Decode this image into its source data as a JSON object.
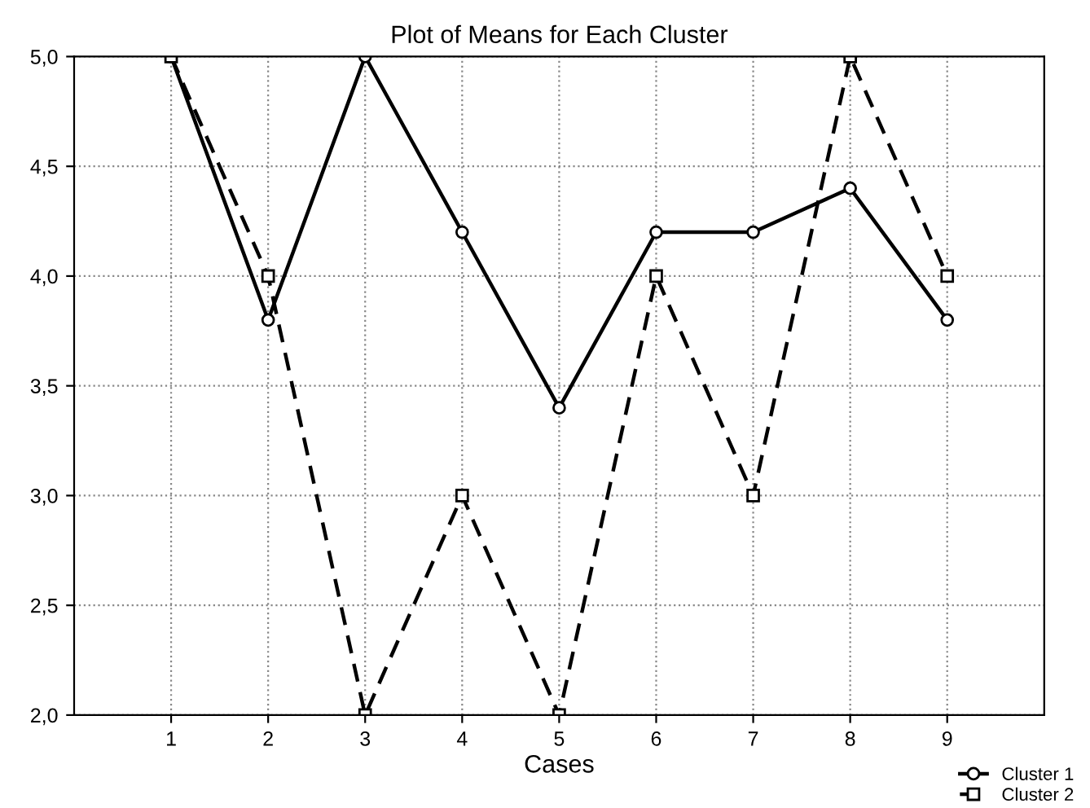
{
  "chart_data": {
    "type": "line",
    "title": "Plot of Means for Each Cluster",
    "xlabel": "Cases",
    "x": [
      1,
      2,
      3,
      4,
      5,
      6,
      7,
      8,
      9
    ],
    "series": [
      {
        "name": "Cluster 1",
        "color": "#000000",
        "marker": "circle",
        "line_style": "solid",
        "values": [
          5.0,
          3.8,
          5.0,
          4.2,
          3.4,
          4.2,
          4.2,
          4.4,
          3.8
        ]
      },
      {
        "name": "Cluster 2",
        "color": "#000000",
        "marker": "square",
        "line_style": "dashed",
        "values": [
          5.0,
          4.0,
          2.0,
          3.0,
          2.0,
          4.0,
          3.0,
          5.0,
          4.0
        ]
      }
    ],
    "xlim": [
      0,
      10
    ],
    "xticks": [
      1,
      2,
      3,
      4,
      5,
      6,
      7,
      8,
      9
    ],
    "ylim": [
      2,
      5
    ],
    "yticks": [
      {
        "value": 2,
        "label": "2,0"
      },
      {
        "value": 2.5,
        "label": "2,5"
      },
      {
        "value": 3,
        "label": "3,0"
      },
      {
        "value": 3.5,
        "label": "3,5"
      },
      {
        "value": 4,
        "label": "4,0"
      },
      {
        "value": 4.5,
        "label": "4,5"
      },
      {
        "value": 5,
        "label": "5,0"
      }
    ],
    "grid": true,
    "legend": "bottom right"
  }
}
